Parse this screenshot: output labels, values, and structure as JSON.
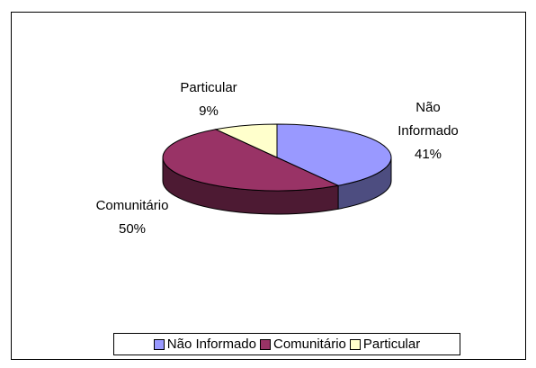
{
  "chart_data": {
    "type": "pie3d",
    "categories": [
      "Não Informado",
      "Comunitário",
      "Particular"
    ],
    "values": [
      41,
      50,
      9
    ],
    "value_labels": [
      "41%",
      "50%",
      "9%"
    ],
    "colors": [
      "#9999ff",
      "#993366",
      "#ffffcc"
    ],
    "legend": "bottom"
  }
}
